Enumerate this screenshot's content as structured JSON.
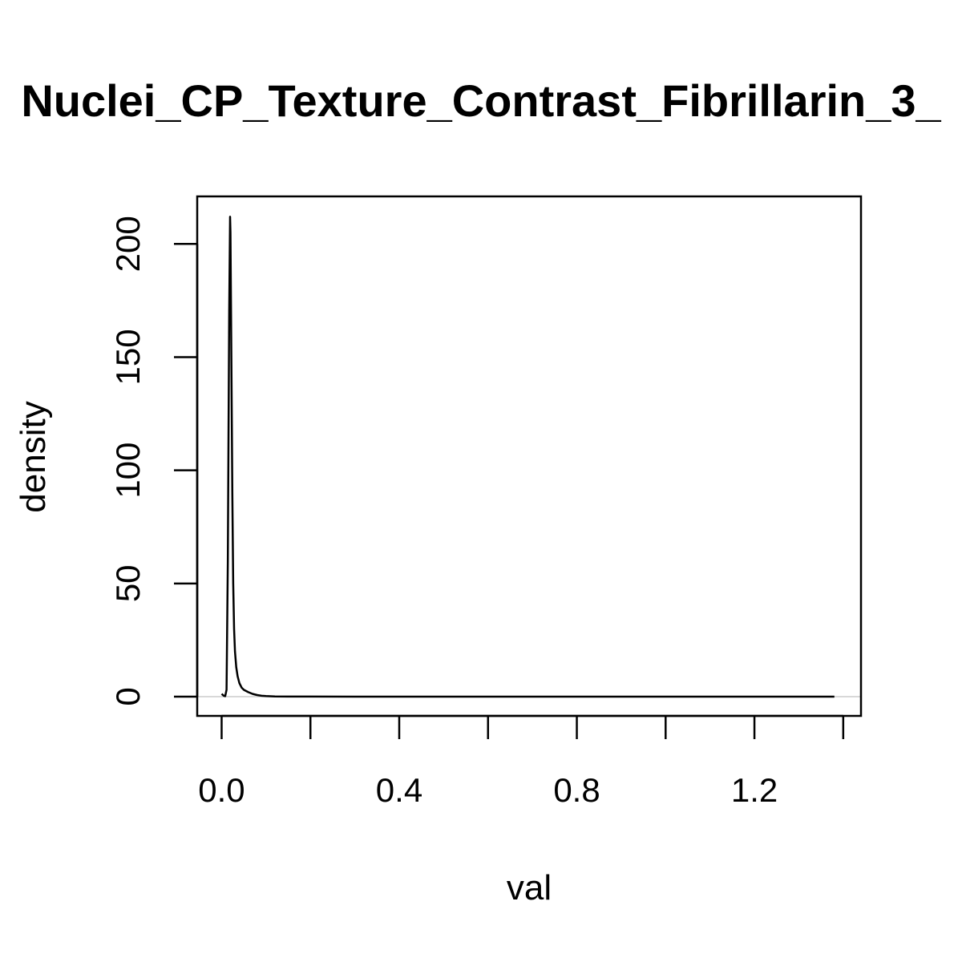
{
  "chart_data": {
    "type": "line",
    "title": "Nuclei_CP_Texture_Contrast_Fibrillarin_3_",
    "xlabel": "val",
    "ylabel": "density",
    "xlim": [
      -0.055,
      1.44
    ],
    "ylim": [
      -8.5,
      221
    ],
    "xticks": [
      0.0,
      0.2,
      0.4,
      0.6,
      0.8,
      1.0,
      1.2,
      1.4
    ],
    "xtick_labels": [
      "0.0",
      "",
      "0.4",
      "",
      "0.8",
      "",
      "1.2",
      ""
    ],
    "yticks": [
      0,
      50,
      100,
      150,
      200
    ],
    "ytick_labels": [
      "0",
      "50",
      "100",
      "150",
      "200"
    ],
    "grid": false,
    "baseline": {
      "y": 0,
      "color": "#cccccc"
    },
    "line_color": "#000000",
    "series": [
      {
        "x": [
          0.0,
          0.005,
          0.008,
          0.011,
          0.014,
          0.017,
          0.019,
          0.02,
          0.022,
          0.024,
          0.026,
          0.028,
          0.03,
          0.033,
          0.036,
          0.04,
          0.045,
          0.05,
          0.06,
          0.07,
          0.08,
          0.09,
          0.1,
          0.12,
          0.15,
          0.2,
          0.3,
          0.5,
          0.8,
          1.1,
          1.38
        ],
        "y": [
          1.2,
          0.4,
          0.2,
          3,
          60,
          170,
          212,
          205,
          150,
          90,
          50,
          30,
          20,
          13,
          9,
          6,
          4,
          3,
          2,
          1.2,
          0.7,
          0.4,
          0.25,
          0.1,
          0.05,
          0.02,
          0.01,
          0.005,
          0.003,
          0.002,
          0.001
        ]
      }
    ]
  }
}
